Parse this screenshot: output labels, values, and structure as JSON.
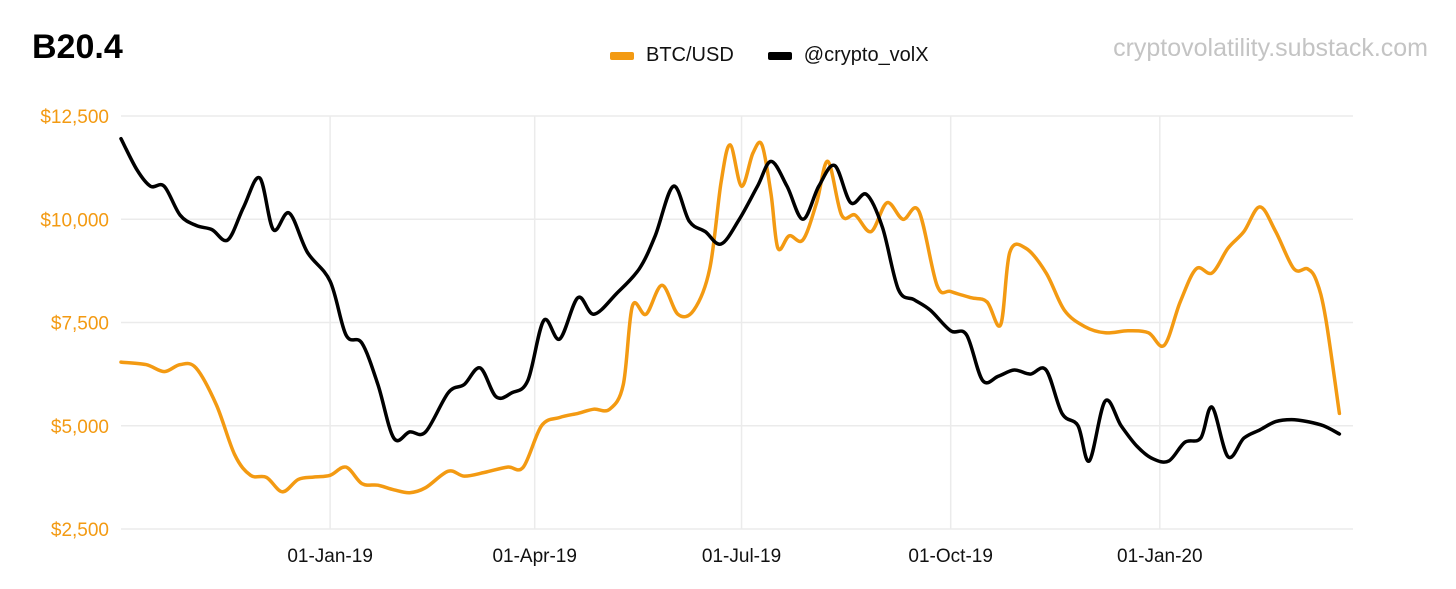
{
  "title": "B20.4",
  "source": "cryptovolatility.substack.com",
  "colors": {
    "btc": "#f39a12",
    "vol": "#000000",
    "axis_labels": "#f39a12",
    "grid": "#ebebeb"
  },
  "chart_data": {
    "type": "line",
    "title": "B20.4",
    "legend_position": "top-center",
    "grid": true,
    "x_domain": [
      "2018-10-01",
      "2020-03-26"
    ],
    "ylim": [
      2500,
      12500
    ],
    "y_ticks": [
      2500,
      5000,
      7500,
      10000,
      12500
    ],
    "y_tick_labels": [
      "$2,500",
      "$5,000",
      "$7,500",
      "$10,000",
      "$12,500"
    ],
    "x_ticks": [
      "2019-01-01",
      "2019-04-01",
      "2019-07-01",
      "2019-10-01",
      "2020-01-01"
    ],
    "x_tick_labels": [
      "01-Jan-19",
      "01-Apr-19",
      "01-Jul-19",
      "01-Oct-19",
      "01-Jan-20"
    ],
    "series": [
      {
        "name": "BTC/USD",
        "color": "#f39a12",
        "points": [
          [
            "2018-10-01",
            6540
          ],
          [
            "2018-10-12",
            6480
          ],
          [
            "2018-10-20",
            6310
          ],
          [
            "2018-10-27",
            6480
          ],
          [
            "2018-11-03",
            6400
          ],
          [
            "2018-11-12",
            5500
          ],
          [
            "2018-11-20",
            4300
          ],
          [
            "2018-11-27",
            3800
          ],
          [
            "2018-12-04",
            3750
          ],
          [
            "2018-12-11",
            3400
          ],
          [
            "2018-12-18",
            3700
          ],
          [
            "2018-12-25",
            3760
          ],
          [
            "2019-01-01",
            3800
          ],
          [
            "2019-01-08",
            4000
          ],
          [
            "2019-01-15",
            3600
          ],
          [
            "2019-01-22",
            3560
          ],
          [
            "2019-01-29",
            3450
          ],
          [
            "2019-02-05",
            3380
          ],
          [
            "2019-02-12",
            3500
          ],
          [
            "2019-02-22",
            3900
          ],
          [
            "2019-03-01",
            3780
          ],
          [
            "2019-03-10",
            3870
          ],
          [
            "2019-03-20",
            4000
          ],
          [
            "2019-03-27",
            4000
          ],
          [
            "2019-04-04",
            5000
          ],
          [
            "2019-04-12",
            5200
          ],
          [
            "2019-04-20",
            5300
          ],
          [
            "2019-04-27",
            5400
          ],
          [
            "2019-05-04",
            5400
          ],
          [
            "2019-05-10",
            6000
          ],
          [
            "2019-05-14",
            7900
          ],
          [
            "2019-05-20",
            7700
          ],
          [
            "2019-05-27",
            8400
          ],
          [
            "2019-06-03",
            7700
          ],
          [
            "2019-06-10",
            7800
          ],
          [
            "2019-06-17",
            8800
          ],
          [
            "2019-06-22",
            10900
          ],
          [
            "2019-06-26",
            11800
          ],
          [
            "2019-07-01",
            10800
          ],
          [
            "2019-07-06",
            11600
          ],
          [
            "2019-07-10",
            11800
          ],
          [
            "2019-07-14",
            10600
          ],
          [
            "2019-07-17",
            9300
          ],
          [
            "2019-07-22",
            9600
          ],
          [
            "2019-07-28",
            9500
          ],
          [
            "2019-08-03",
            10400
          ],
          [
            "2019-08-08",
            11400
          ],
          [
            "2019-08-14",
            10100
          ],
          [
            "2019-08-20",
            10100
          ],
          [
            "2019-08-27",
            9700
          ],
          [
            "2019-09-03",
            10400
          ],
          [
            "2019-09-10",
            10000
          ],
          [
            "2019-09-17",
            10200
          ],
          [
            "2019-09-25",
            8400
          ],
          [
            "2019-10-01",
            8250
          ],
          [
            "2019-10-10",
            8100
          ],
          [
            "2019-10-17",
            8000
          ],
          [
            "2019-10-23",
            7450
          ],
          [
            "2019-10-27",
            9200
          ],
          [
            "2019-11-03",
            9300
          ],
          [
            "2019-11-12",
            8700
          ],
          [
            "2019-11-20",
            7800
          ],
          [
            "2019-11-29",
            7400
          ],
          [
            "2019-12-08",
            7250
          ],
          [
            "2019-12-18",
            7300
          ],
          [
            "2019-12-27",
            7250
          ],
          [
            "2020-01-03",
            6950
          ],
          [
            "2020-01-10",
            8000
          ],
          [
            "2020-01-17",
            8800
          ],
          [
            "2020-01-24",
            8700
          ],
          [
            "2020-01-31",
            9300
          ],
          [
            "2020-02-07",
            9700
          ],
          [
            "2020-02-14",
            10300
          ],
          [
            "2020-02-21",
            9700
          ],
          [
            "2020-02-29",
            8800
          ],
          [
            "2020-03-06",
            8800
          ],
          [
            "2020-03-10",
            8500
          ],
          [
            "2020-03-14",
            7600
          ],
          [
            "2020-03-20",
            5300
          ]
        ]
      },
      {
        "name": "@crypto_volX",
        "color": "#000000",
        "points": [
          [
            "2018-10-01",
            11950
          ],
          [
            "2018-10-08",
            11200
          ],
          [
            "2018-10-14",
            10800
          ],
          [
            "2018-10-20",
            10800
          ],
          [
            "2018-10-27",
            10100
          ],
          [
            "2018-11-03",
            9850
          ],
          [
            "2018-11-10",
            9750
          ],
          [
            "2018-11-17",
            9500
          ],
          [
            "2018-11-24",
            10300
          ],
          [
            "2018-12-01",
            11000
          ],
          [
            "2018-12-07",
            9750
          ],
          [
            "2018-12-14",
            10150
          ],
          [
            "2018-12-22",
            9200
          ],
          [
            "2019-01-01",
            8500
          ],
          [
            "2019-01-08",
            7200
          ],
          [
            "2019-01-15",
            7000
          ],
          [
            "2019-01-22",
            6000
          ],
          [
            "2019-01-29",
            4700
          ],
          [
            "2019-02-05",
            4850
          ],
          [
            "2019-02-12",
            4850
          ],
          [
            "2019-02-22",
            5800
          ],
          [
            "2019-03-01",
            6000
          ],
          [
            "2019-03-08",
            6400
          ],
          [
            "2019-03-15",
            5700
          ],
          [
            "2019-03-22",
            5800
          ],
          [
            "2019-03-29",
            6100
          ],
          [
            "2019-04-05",
            7550
          ],
          [
            "2019-04-12",
            7100
          ],
          [
            "2019-04-20",
            8100
          ],
          [
            "2019-04-27",
            7700
          ],
          [
            "2019-05-07",
            8200
          ],
          [
            "2019-05-17",
            8800
          ],
          [
            "2019-05-24",
            9600
          ],
          [
            "2019-06-01",
            10800
          ],
          [
            "2019-06-08",
            9950
          ],
          [
            "2019-06-15",
            9700
          ],
          [
            "2019-06-22",
            9400
          ],
          [
            "2019-06-30",
            10000
          ],
          [
            "2019-07-08",
            10800
          ],
          [
            "2019-07-14",
            11400
          ],
          [
            "2019-07-21",
            10800
          ],
          [
            "2019-07-28",
            10000
          ],
          [
            "2019-08-04",
            10800
          ],
          [
            "2019-08-11",
            11300
          ],
          [
            "2019-08-18",
            10400
          ],
          [
            "2019-08-25",
            10600
          ],
          [
            "2019-09-01",
            9800
          ],
          [
            "2019-09-08",
            8300
          ],
          [
            "2019-09-15",
            8050
          ],
          [
            "2019-09-22",
            7800
          ],
          [
            "2019-10-01",
            7300
          ],
          [
            "2019-10-08",
            7200
          ],
          [
            "2019-10-15",
            6100
          ],
          [
            "2019-10-22",
            6200
          ],
          [
            "2019-10-29",
            6350
          ],
          [
            "2019-11-05",
            6250
          ],
          [
            "2019-11-12",
            6350
          ],
          [
            "2019-11-19",
            5300
          ],
          [
            "2019-11-26",
            5000
          ],
          [
            "2019-12-01",
            4150
          ],
          [
            "2019-12-08",
            5600
          ],
          [
            "2019-12-15",
            5000
          ],
          [
            "2019-12-22",
            4500
          ],
          [
            "2019-12-29",
            4200
          ],
          [
            "2020-01-05",
            4150
          ],
          [
            "2020-01-12",
            4600
          ],
          [
            "2020-01-19",
            4700
          ],
          [
            "2020-01-24",
            5450
          ],
          [
            "2020-01-31",
            4250
          ],
          [
            "2020-02-07",
            4700
          ],
          [
            "2020-02-14",
            4900
          ],
          [
            "2020-02-21",
            5100
          ],
          [
            "2020-02-28",
            5150
          ],
          [
            "2020-03-06",
            5100
          ],
          [
            "2020-03-13",
            5000
          ],
          [
            "2020-03-20",
            4800
          ]
        ]
      }
    ]
  }
}
